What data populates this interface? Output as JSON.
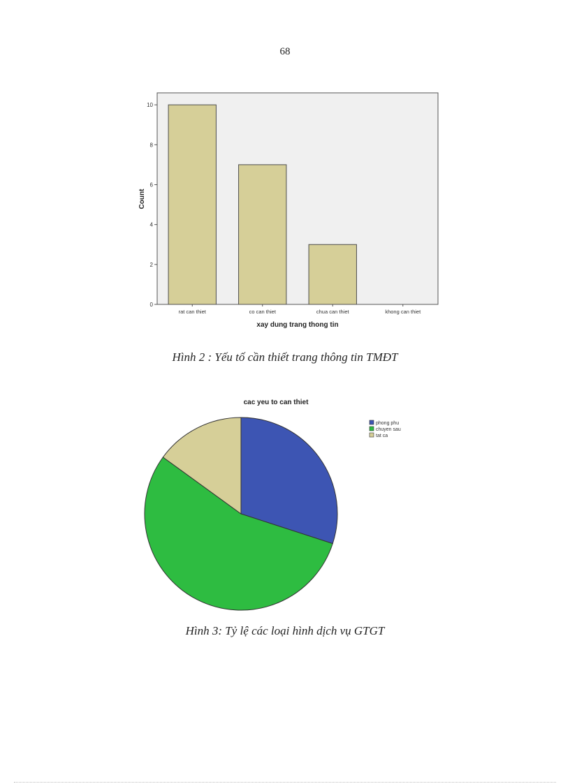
{
  "page": {
    "number": "68"
  },
  "figures": [
    {
      "caption": "Hình 2 : Yếu tố cần thiết trang thông tin TMĐT"
    },
    {
      "caption": "Hình 3: Tỷ lệ các loại hình dịch vụ GTGT"
    }
  ],
  "chart_data": [
    {
      "type": "bar",
      "title": "",
      "xlabel": "xay dung trang thong tin",
      "ylabel": "Count",
      "categories": [
        "rat can thiet",
        "co can thiet",
        "chua can thiet",
        "khong can thiet"
      ],
      "values": [
        10,
        7,
        3,
        0
      ],
      "ylim": [
        0,
        10.6
      ],
      "yticks": [
        0,
        2,
        4,
        6,
        8,
        10
      ],
      "grid": false,
      "colors": {
        "bar": "#d6cf98",
        "bar_stroke": "#4d4d4d",
        "plot_bg": "#f0f0f0"
      }
    },
    {
      "type": "pie",
      "title": "cac yeu to can thiet",
      "labels": [
        "phong phu",
        "chuyen sau",
        "tat ca"
      ],
      "values": [
        30,
        55,
        15
      ],
      "colors": [
        "#3d55b3",
        "#2ebc41",
        "#d6cf98"
      ],
      "legend": "top-right",
      "start_angle_deg": 0,
      "direction": "clockwise"
    }
  ]
}
